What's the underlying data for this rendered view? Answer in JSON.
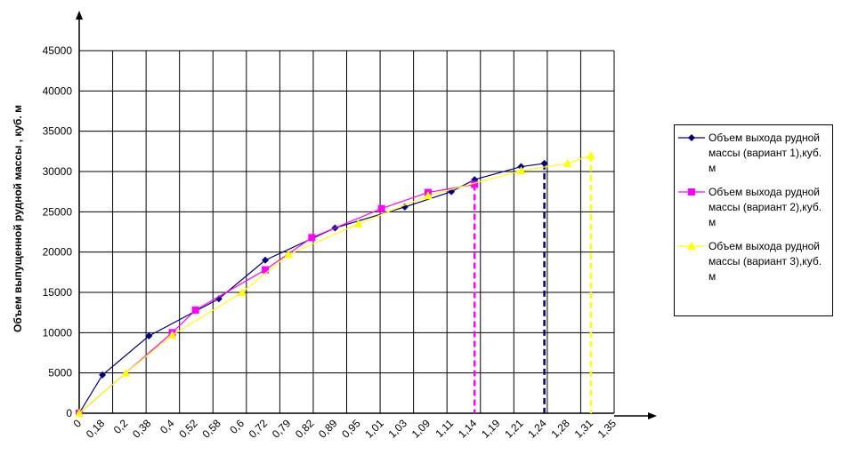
{
  "chart_data": {
    "type": "line",
    "y_label": "Объем выпущенной рудной массы , куб. м",
    "categories": [
      "0",
      "0,18",
      "0,2",
      "0,38",
      "0,4",
      "0,52",
      "0,58",
      "0,6",
      "0,72",
      "0,79",
      "0,82",
      "0,89",
      "0,95",
      "1,01",
      "1,03",
      "1,09",
      "1,11",
      "1,14",
      "1,19",
      "1,21",
      "1,24",
      "1,28",
      "1,31",
      "1,35"
    ],
    "ylim": [
      0,
      45000
    ],
    "yticks": [
      0,
      5000,
      10000,
      15000,
      20000,
      25000,
      30000,
      35000,
      40000,
      45000
    ],
    "grid": true,
    "legend": "right",
    "series": [
      {
        "name": "Объем выхода рудной массы (вариант 1),куб. м",
        "color": "#000080",
        "marker": "diamond",
        "x": [
          "0",
          "0,18",
          "0,38",
          "0,58",
          "0,72",
          "0,89",
          "1,03",
          "1,11",
          "1,14",
          "1,21",
          "1,24"
        ],
        "values": [
          0,
          4750,
          9600,
          14200,
          19000,
          23000,
          25600,
          27500,
          29000,
          30600,
          31000
        ]
      },
      {
        "name": "Объем выхода рудной массы (вариант 2),куб. м",
        "color": "#ff00ff",
        "marker": "square",
        "x": [
          "0",
          "0,4",
          "0,52",
          "0,72",
          "0,82",
          "1,01",
          "1,09",
          "1,14"
        ],
        "values": [
          0,
          10000,
          12800,
          17800,
          21800,
          25400,
          27400,
          28400
        ]
      },
      {
        "name": "Объем выхода рудной массы (вариант 3),куб. м",
        "color": "#ffff00",
        "marker": "triangle",
        "x": [
          "0",
          "0,2",
          "0,4",
          "0,6",
          "0,79",
          "0,95",
          "1,09",
          "1,21",
          "1,28",
          "1,31"
        ],
        "values": [
          0,
          5000,
          9700,
          15000,
          19700,
          23500,
          27000,
          30100,
          31000,
          32000
        ]
      }
    ]
  }
}
